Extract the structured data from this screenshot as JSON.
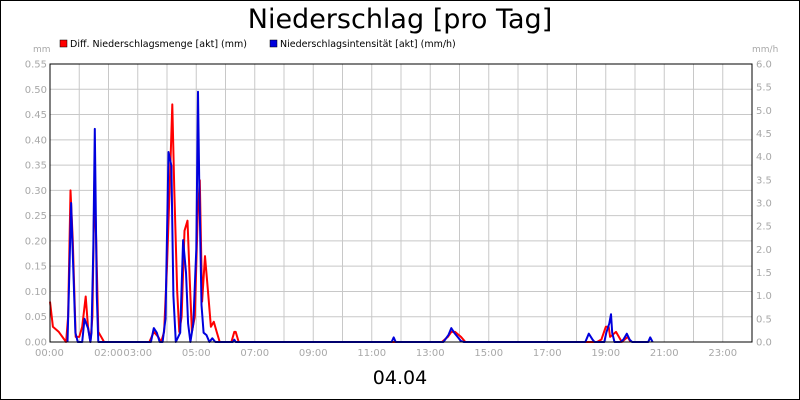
{
  "chart_data": {
    "type": "line",
    "title": "Niederschlag [pro Tag]",
    "date_label": "04.04",
    "left_unit": "mm",
    "right_unit": "mm/h",
    "grid": true,
    "legend_position": "top-left",
    "x_range_hours": [
      0,
      24
    ],
    "x_ticks": [
      {
        "label": "00:00",
        "h": 0
      },
      {
        "label": "02:00",
        "h": 2
      },
      {
        "label": "03:00",
        "h": 3
      },
      {
        "label": "05:00",
        "h": 5
      },
      {
        "label": "07:00",
        "h": 7
      },
      {
        "label": "09:00",
        "h": 9
      },
      {
        "label": "11:00",
        "h": 11
      },
      {
        "label": "13:00",
        "h": 13
      },
      {
        "label": "15:00",
        "h": 15
      },
      {
        "label": "17:00",
        "h": 17
      },
      {
        "label": "19:00",
        "h": 19
      },
      {
        "label": "21:00",
        "h": 21
      },
      {
        "label": "23:00",
        "h": 23
      }
    ],
    "y_left": {
      "range": [
        0,
        0.55
      ],
      "ticks": [
        "0.00",
        "0.05",
        "0.10",
        "0.15",
        "0.20",
        "0.25",
        "0.30",
        "0.35",
        "0.40",
        "0.45",
        "0.50",
        "0.55"
      ]
    },
    "y_right": {
      "range": [
        0,
        6
      ],
      "ticks": [
        "0.0",
        "0.5",
        "1.0",
        "1.5",
        "2.0",
        "2.5",
        "3.0",
        "3.5",
        "4.0",
        "4.5",
        "5.0",
        "5.5",
        "6.0"
      ]
    },
    "series": [
      {
        "name": "Diff. Niederschlagsmenge [akt] (mm)",
        "axis": "left",
        "color": "#ff0000",
        "points": [
          [
            0.0,
            0.08
          ],
          [
            0.1,
            0.03
          ],
          [
            0.3,
            0.02
          ],
          [
            0.55,
            0.0
          ],
          [
            0.62,
            0.05
          ],
          [
            0.7,
            0.3
          ],
          [
            0.78,
            0.2
          ],
          [
            0.83,
            0.1
          ],
          [
            0.88,
            0.01
          ],
          [
            1.0,
            0.01
          ],
          [
            1.1,
            0.03
          ],
          [
            1.22,
            0.09
          ],
          [
            1.3,
            0.03
          ],
          [
            1.38,
            0.0
          ],
          [
            1.45,
            0.05
          ],
          [
            1.52,
            0.32
          ],
          [
            1.58,
            0.2
          ],
          [
            1.65,
            0.02
          ],
          [
            1.75,
            0.01
          ],
          [
            1.85,
            0.0
          ],
          [
            3.4,
            0.0
          ],
          [
            3.55,
            0.02
          ],
          [
            3.7,
            0.01
          ],
          [
            3.8,
            0.0
          ],
          [
            3.9,
            0.02
          ],
          [
            4.0,
            0.15
          ],
          [
            4.1,
            0.32
          ],
          [
            4.18,
            0.47
          ],
          [
            4.25,
            0.3
          ],
          [
            4.35,
            0.1
          ],
          [
            4.42,
            0.02
          ],
          [
            4.5,
            0.05
          ],
          [
            4.6,
            0.22
          ],
          [
            4.7,
            0.24
          ],
          [
            4.78,
            0.12
          ],
          [
            4.85,
            0.02
          ],
          [
            4.95,
            0.05
          ],
          [
            5.05,
            0.25
          ],
          [
            5.12,
            0.32
          ],
          [
            5.2,
            0.08
          ],
          [
            5.3,
            0.17
          ],
          [
            5.4,
            0.1
          ],
          [
            5.5,
            0.03
          ],
          [
            5.6,
            0.04
          ],
          [
            5.7,
            0.02
          ],
          [
            5.8,
            0.0
          ],
          [
            6.2,
            0.0
          ],
          [
            6.3,
            0.02
          ],
          [
            6.35,
            0.02
          ],
          [
            6.45,
            0.0
          ],
          [
            13.4,
            0.0
          ],
          [
            13.6,
            0.01
          ],
          [
            13.72,
            0.02
          ],
          [
            13.85,
            0.02
          ],
          [
            13.95,
            0.015
          ],
          [
            14.05,
            0.01
          ],
          [
            14.2,
            0.0
          ],
          [
            18.7,
            0.0
          ],
          [
            18.85,
            0.005
          ],
          [
            19.0,
            0.03
          ],
          [
            19.1,
            0.03
          ],
          [
            19.15,
            0.01
          ],
          [
            19.25,
            0.015
          ],
          [
            19.35,
            0.02
          ],
          [
            19.45,
            0.01
          ],
          [
            19.55,
            0.0
          ],
          [
            19.75,
            0.01
          ],
          [
            19.85,
            0.0
          ]
        ]
      },
      {
        "name": "Niederschlagsintensität [akt] (mm/h)",
        "axis": "right",
        "color": "#0000dd",
        "points": [
          [
            0.6,
            0.0
          ],
          [
            0.65,
            1.2
          ],
          [
            0.72,
            3.0
          ],
          [
            0.8,
            1.5
          ],
          [
            0.87,
            0.2
          ],
          [
            0.95,
            0.0
          ],
          [
            1.1,
            0.0
          ],
          [
            1.18,
            0.5
          ],
          [
            1.3,
            0.3
          ],
          [
            1.38,
            0.0
          ],
          [
            1.42,
            0.2
          ],
          [
            1.48,
            2.0
          ],
          [
            1.53,
            4.6
          ],
          [
            1.6,
            1.0
          ],
          [
            1.65,
            0.0
          ],
          [
            3.45,
            0.0
          ],
          [
            3.55,
            0.3
          ],
          [
            3.65,
            0.2
          ],
          [
            3.75,
            0.0
          ],
          [
            3.85,
            0.0
          ],
          [
            3.95,
            0.5
          ],
          [
            4.05,
            4.1
          ],
          [
            4.15,
            3.8
          ],
          [
            4.22,
            1.0
          ],
          [
            4.3,
            0.0
          ],
          [
            4.45,
            0.2
          ],
          [
            4.55,
            2.2
          ],
          [
            4.65,
            1.5
          ],
          [
            4.72,
            0.4
          ],
          [
            4.8,
            0.0
          ],
          [
            4.9,
            0.4
          ],
          [
            5.0,
            2.0
          ],
          [
            5.06,
            5.4
          ],
          [
            5.1,
            3.5
          ],
          [
            5.18,
            0.8
          ],
          [
            5.25,
            0.2
          ],
          [
            5.35,
            0.15
          ],
          [
            5.45,
            0.0
          ],
          [
            5.55,
            0.08
          ],
          [
            5.65,
            0.0
          ],
          [
            6.25,
            0.0
          ],
          [
            6.3,
            0.05
          ],
          [
            6.35,
            0.0
          ],
          [
            11.68,
            0.0
          ],
          [
            11.75,
            0.1
          ],
          [
            11.82,
            0.0
          ],
          [
            13.45,
            0.0
          ],
          [
            13.62,
            0.15
          ],
          [
            13.72,
            0.3
          ],
          [
            13.82,
            0.2
          ],
          [
            13.95,
            0.1
          ],
          [
            14.05,
            0.02
          ],
          [
            14.15,
            0.0
          ],
          [
            18.3,
            0.0
          ],
          [
            18.42,
            0.18
          ],
          [
            18.55,
            0.05
          ],
          [
            18.62,
            0.0
          ],
          [
            18.95,
            0.0
          ],
          [
            19.02,
            0.2
          ],
          [
            19.12,
            0.4
          ],
          [
            19.18,
            0.6
          ],
          [
            19.22,
            0.2
          ],
          [
            19.3,
            0.0
          ],
          [
            19.5,
            0.0
          ],
          [
            19.6,
            0.05
          ],
          [
            19.72,
            0.18
          ],
          [
            19.82,
            0.05
          ],
          [
            19.9,
            0.0
          ],
          [
            20.45,
            0.0
          ],
          [
            20.52,
            0.1
          ],
          [
            20.6,
            0.0
          ]
        ]
      }
    ]
  }
}
